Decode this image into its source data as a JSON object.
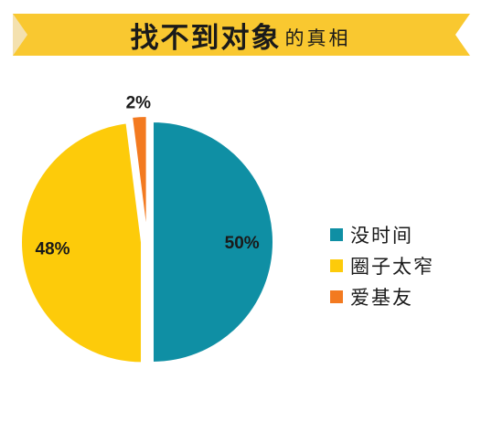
{
  "title": {
    "main": "找不到对象",
    "sub": "的真相"
  },
  "colors": {
    "banner": "#F9C830",
    "banner_dark": "#E0A91A"
  },
  "chart_data": {
    "type": "pie",
    "title": "找不到对象的真相",
    "slices": [
      {
        "name": "没时间",
        "value": 50,
        "label": "50%",
        "color": "#0F8FA4"
      },
      {
        "name": "圈子太窄",
        "value": 48,
        "label": "48%",
        "color": "#FDCB0A"
      },
      {
        "name": "爱基友",
        "value": 2,
        "label": "2%",
        "color": "#F37A20"
      }
    ],
    "legend_position": "right"
  }
}
